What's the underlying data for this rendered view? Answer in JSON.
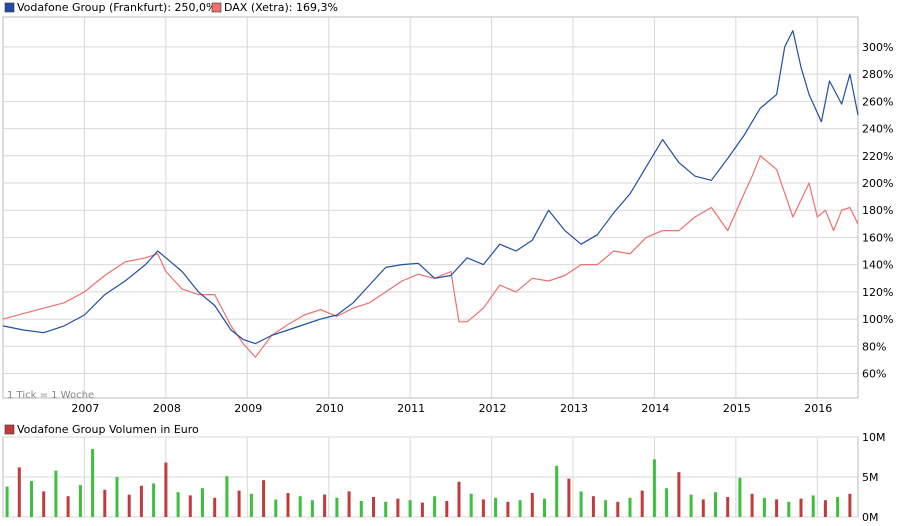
{
  "chart_data": [
    {
      "type": "line",
      "title": "",
      "legend": [
        {
          "label": "Vodafone Group (Frankfurt): 250,0%",
          "color": "#1f4fa3"
        },
        {
          "label": "DAX (Xetra): 169,3%",
          "color": "#f06f6f"
        }
      ],
      "legend_position": "top-left",
      "tick_note": "1 Tick = 1 Woche",
      "x_tick_labels": [
        "2007",
        "2008",
        "2009",
        "2010",
        "2011",
        "2012",
        "2013",
        "2014",
        "2015",
        "2016"
      ],
      "x_range": [
        2006.0,
        2016.5
      ],
      "ylim": [
        42,
        322
      ],
      "y_tick_values": [
        60,
        80,
        100,
        120,
        140,
        160,
        180,
        200,
        220,
        240,
        260,
        280,
        300
      ],
      "y_tick_labels": [
        "60%",
        "80%",
        "100%",
        "120%",
        "140%",
        "160%",
        "180%",
        "200%",
        "220%",
        "240%",
        "260%",
        "280%",
        "300%"
      ],
      "y_axis_position": "right",
      "grid": true,
      "series": [
        {
          "name": "Vodafone Group (Frankfurt)",
          "color": "#1f4fa3",
          "x": [
            2006.0,
            2006.25,
            2006.5,
            2006.75,
            2007.0,
            2007.25,
            2007.5,
            2007.75,
            2007.9,
            2008.0,
            2008.2,
            2008.4,
            2008.6,
            2008.8,
            2008.95,
            2009.1,
            2009.3,
            2009.5,
            2009.7,
            2009.9,
            2010.1,
            2010.3,
            2010.5,
            2010.7,
            2010.9,
            2011.1,
            2011.3,
            2011.5,
            2011.7,
            2011.9,
            2012.1,
            2012.3,
            2012.5,
            2012.7,
            2012.9,
            2013.1,
            2013.3,
            2013.5,
            2013.7,
            2013.9,
            2014.1,
            2014.3,
            2014.5,
            2014.7,
            2014.9,
            2015.1,
            2015.3,
            2015.5,
            2015.6,
            2015.7,
            2015.8,
            2015.9,
            2016.05,
            2016.15,
            2016.3,
            2016.4,
            2016.5
          ],
          "values": [
            95,
            92,
            90,
            95,
            103,
            118,
            128,
            140,
            150,
            145,
            135,
            120,
            110,
            92,
            85,
            82,
            88,
            92,
            96,
            100,
            103,
            112,
            125,
            138,
            140,
            141,
            130,
            132,
            145,
            140,
            155,
            150,
            158,
            180,
            165,
            155,
            162,
            178,
            192,
            212,
            232,
            215,
            205,
            202,
            218,
            235,
            255,
            265,
            300,
            312,
            285,
            265,
            245,
            275,
            258,
            280,
            250
          ]
        },
        {
          "name": "DAX (Xetra)",
          "color": "#f06f6f",
          "x": [
            2006.0,
            2006.25,
            2006.5,
            2006.75,
            2007.0,
            2007.25,
            2007.5,
            2007.75,
            2007.9,
            2008.0,
            2008.2,
            2008.4,
            2008.6,
            2008.8,
            2008.95,
            2009.1,
            2009.3,
            2009.5,
            2009.7,
            2009.9,
            2010.1,
            2010.3,
            2010.5,
            2010.7,
            2010.9,
            2011.1,
            2011.3,
            2011.5,
            2011.6,
            2011.7,
            2011.9,
            2012.1,
            2012.3,
            2012.5,
            2012.7,
            2012.9,
            2013.1,
            2013.3,
            2013.5,
            2013.7,
            2013.9,
            2014.1,
            2014.3,
            2014.5,
            2014.7,
            2014.9,
            2015.1,
            2015.2,
            2015.3,
            2015.5,
            2015.7,
            2015.9,
            2016.0,
            2016.1,
            2016.2,
            2016.3,
            2016.4,
            2016.5
          ],
          "values": [
            100,
            104,
            108,
            112,
            120,
            132,
            142,
            145,
            148,
            135,
            122,
            118,
            118,
            95,
            82,
            72,
            88,
            96,
            103,
            107,
            102,
            108,
            112,
            120,
            128,
            133,
            130,
            135,
            98,
            98,
            108,
            125,
            120,
            130,
            128,
            132,
            140,
            140,
            150,
            148,
            160,
            165,
            165,
            175,
            182,
            165,
            192,
            205,
            220,
            210,
            175,
            200,
            175,
            180,
            165,
            180,
            182,
            170
          ]
        }
      ]
    },
    {
      "type": "bar",
      "title": "Vodafone Group Volumen in Euro",
      "legend": [
        {
          "label": "Vodafone Group Volumen in Euro",
          "color": "#c23b3b"
        }
      ],
      "ylim": [
        0,
        10
      ],
      "y_tick_labels": [
        "10M",
        "5M",
        "0M"
      ],
      "y_tick_values": [
        10,
        5,
        0
      ],
      "y_axis_position": "right",
      "colors": {
        "up": "#3fbf3f",
        "down": "#c23b3b"
      },
      "values_unit": "Mio. Euro",
      "x": [
        2006.05,
        2006.2,
        2006.35,
        2006.5,
        2006.65,
        2006.8,
        2006.95,
        2007.1,
        2007.25,
        2007.4,
        2007.55,
        2007.7,
        2007.85,
        2008.0,
        2008.15,
        2008.3,
        2008.45,
        2008.6,
        2008.75,
        2008.9,
        2009.05,
        2009.2,
        2009.35,
        2009.5,
        2009.65,
        2009.8,
        2009.95,
        2010.1,
        2010.25,
        2010.4,
        2010.55,
        2010.7,
        2010.85,
        2011.0,
        2011.15,
        2011.3,
        2011.45,
        2011.6,
        2011.75,
        2011.9,
        2012.05,
        2012.2,
        2012.35,
        2012.5,
        2012.65,
        2012.8,
        2012.95,
        2013.1,
        2013.25,
        2013.4,
        2013.55,
        2013.7,
        2013.85,
        2014.0,
        2014.15,
        2014.3,
        2014.45,
        2014.6,
        2014.75,
        2014.9,
        2015.05,
        2015.2,
        2015.35,
        2015.5,
        2015.65,
        2015.8,
        2015.95,
        2016.1,
        2016.25,
        2016.4
      ],
      "values": [
        3.8,
        6.2,
        4.5,
        3.2,
        5.8,
        2.6,
        4.0,
        8.5,
        3.4,
        5.0,
        2.8,
        3.9,
        4.2,
        6.8,
        3.1,
        2.7,
        3.6,
        2.4,
        5.1,
        3.3,
        2.9,
        4.6,
        2.2,
        3.0,
        2.6,
        2.1,
        2.8,
        2.4,
        3.2,
        2.0,
        2.5,
        1.9,
        2.3,
        2.1,
        1.8,
        2.6,
        2.0,
        4.4,
        2.9,
        2.2,
        2.4,
        1.9,
        2.1,
        3.0,
        2.3,
        6.4,
        4.8,
        3.2,
        2.6,
        2.1,
        1.9,
        2.4,
        3.3,
        7.2,
        3.6,
        5.6,
        2.8,
        2.2,
        3.1,
        2.5,
        4.9,
        2.9,
        2.4,
        2.2,
        1.9,
        2.3,
        2.7,
        2.1,
        2.5,
        2.9
      ],
      "up": [
        true,
        false,
        true,
        false,
        true,
        false,
        true,
        true,
        false,
        true,
        false,
        false,
        true,
        false,
        true,
        false,
        true,
        false,
        true,
        false,
        true,
        false,
        true,
        false,
        true,
        true,
        false,
        true,
        false,
        true,
        false,
        true,
        false,
        true,
        false,
        true,
        false,
        false,
        true,
        false,
        true,
        false,
        true,
        false,
        true,
        true,
        false,
        true,
        false,
        true,
        false,
        true,
        false,
        true,
        true,
        false,
        true,
        false,
        true,
        false,
        true,
        false,
        true,
        false,
        true,
        false,
        true,
        false,
        true,
        false
      ]
    }
  ]
}
